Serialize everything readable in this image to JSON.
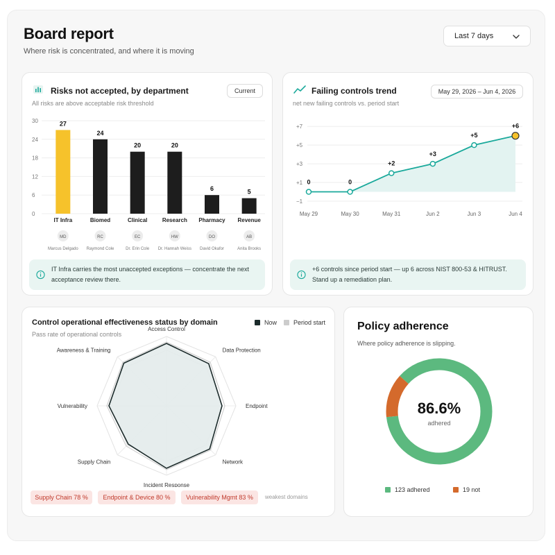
{
  "header": {
    "title": "Board report",
    "subtitle": "Where risk is concentrated, and where it is moving",
    "range_label": "Last 7 days"
  },
  "risks_card": {
    "title": "Risks not accepted, by department",
    "subtitle": "All risks are above acceptable risk threshold",
    "pill": "Current",
    "callout": "IT Infra carries the most unaccepted exceptions — concentrate the next acceptance review there.",
    "owners": [
      {
        "initials": "MD",
        "name": "Marcus Delgado"
      },
      {
        "initials": "RC",
        "name": "Raymond Cole"
      },
      {
        "initials": "EC",
        "name": "Dr. Erin Cole"
      },
      {
        "initials": "HW",
        "name": "Dr. Hannah Weiss"
      },
      {
        "initials": "DO",
        "name": "David Okafor"
      },
      {
        "initials": "AB",
        "name": "Anita Brooks"
      }
    ]
  },
  "trend_card": {
    "title": "Failing controls trend",
    "subtitle": "net new failing controls vs. period start",
    "date_range": "May 29, 2026 – Jun 4, 2026",
    "callout": "+6 controls since period start — up 6 across NIST 800-53 & HITRUST. Stand up a remediation plan."
  },
  "radar_card": {
    "title": "Control operational effectiveness status by domain",
    "subtitle": "Pass rate of operational controls",
    "legend_now": "Now",
    "legend_start": "Period start",
    "weak_tags": [
      "Supply Chain 78 %",
      "Endpoint & Device 80 %",
      "Vulnerability Mgmt 83 %"
    ],
    "weak_label": "weakest domains"
  },
  "policy_card": {
    "title": "Policy adherence",
    "subtitle": "Where policy adherence is slipping.",
    "percent_text": "86.6%",
    "center_label": "adhered",
    "legend_adhered": "123 adhered",
    "legend_not": "19 not"
  },
  "colors": {
    "bar_highlight": "#f6c22b",
    "bar_default": "#1d1d1d",
    "trend_line": "#1aa99b",
    "trend_fill": "#e3f3f1",
    "donut_adhered": "#5cb97f",
    "donut_not": "#d46a2c",
    "radar_now": "#1c2b2b",
    "radar_fill": "#e3ebeb"
  },
  "chart_data": [
    {
      "type": "bar",
      "categories": [
        "IT Infra",
        "Biomed",
        "Clinical",
        "Research",
        "Pharmacy",
        "Revenue"
      ],
      "values": [
        27,
        24,
        20,
        20,
        6,
        5
      ],
      "ylim": [
        0,
        30
      ],
      "yticks": [
        "30",
        "24",
        "18",
        "12",
        "6",
        "0"
      ],
      "highlight_index": 0
    },
    {
      "type": "line",
      "x": [
        "May 29",
        "May 30",
        "May 31",
        "Jun 2",
        "Jun 3",
        "Jun 4"
      ],
      "values": [
        0,
        0,
        2,
        3,
        5,
        6
      ],
      "labels": [
        "0",
        "0",
        "+2",
        "+3",
        "+5",
        "+6"
      ],
      "ylim": [
        -1,
        7
      ],
      "yticks": [
        "+7",
        "+5",
        "+3",
        "+1",
        "−1"
      ]
    },
    {
      "type": "radar",
      "categories": [
        "Access Control",
        "Data Protection",
        "Endpoint",
        "Network",
        "Incident Response",
        "Supply Chain",
        "Vulnerability",
        "Awareness & Training"
      ],
      "series": [
        {
          "name": "Now",
          "values": [
            90,
            86,
            80,
            88,
            90,
            78,
            83,
            87
          ]
        },
        {
          "name": "Period start",
          "values": [
            92,
            89,
            84,
            90,
            92,
            82,
            86,
            89
          ]
        }
      ],
      "ylim": [
        0,
        100
      ]
    },
    {
      "type": "pie",
      "categories": [
        "adhered",
        "not"
      ],
      "values": [
        123,
        19
      ]
    }
  ]
}
